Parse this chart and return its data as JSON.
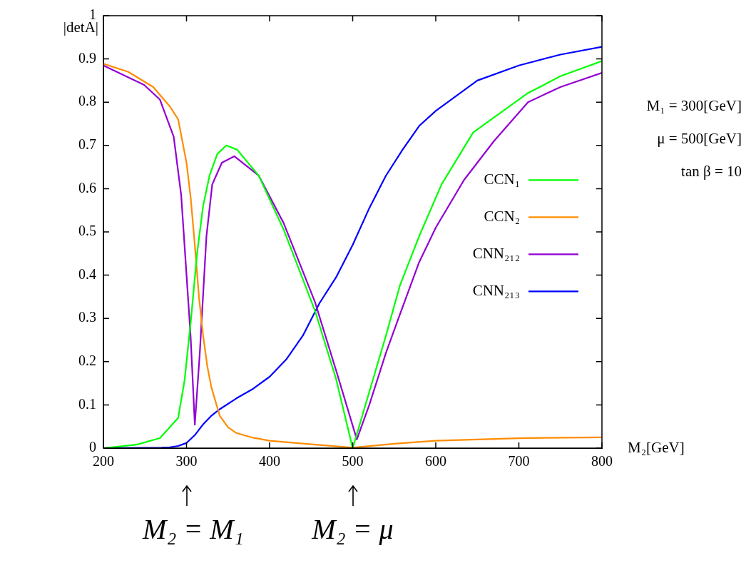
{
  "chart_data": {
    "type": "line",
    "xlabel": "M₂[GeV]",
    "ylabel": "|detA|",
    "xlim": [
      200,
      800
    ],
    "xticks": [
      200,
      300,
      400,
      500,
      600,
      700,
      800
    ],
    "ylim": [
      0,
      1
    ],
    "yticks": [
      0,
      0.1,
      0.2,
      0.3,
      0.4,
      0.5,
      0.6,
      0.7,
      0.8,
      0.9,
      1
    ],
    "grid": false,
    "legend": "right",
    "marker": "none",
    "line_style": "solid",
    "annotations": [
      "M₁ = 300[GeV]",
      "μ = 500[GeV]",
      "tan β = 10",
      "M₂ = M₁",
      "M₂ = μ"
    ],
    "series": [
      {
        "name": "CCN₁",
        "color": "#00ff00",
        "x": [
          200,
          240,
          268,
          290,
          297.7,
          305,
          312.7,
          320,
          327.7,
          337,
          348,
          361,
          387,
          417,
          454.6,
          480,
          500,
          520,
          540,
          557,
          580,
          607,
          645,
          710,
          750,
          800
        ],
        "values": [
          0.0,
          0.008,
          0.023,
          0.07,
          0.157,
          0.29,
          0.45,
          0.56,
          0.63,
          0.68,
          0.7,
          0.69,
          0.63,
          0.505,
          0.318,
          0.16,
          0.0,
          0.13,
          0.26,
          0.377,
          0.49,
          0.61,
          0.73,
          0.82,
          0.86,
          0.895
        ]
      },
      {
        "name": "CCN₂",
        "color": "#ff8c00",
        "x": [
          200,
          230,
          260,
          280,
          290,
          300,
          305,
          310,
          315,
          320,
          325,
          330,
          340,
          350,
          360,
          380,
          400,
          450,
          500,
          550,
          600,
          700,
          800
        ],
        "values": [
          0.889,
          0.87,
          0.835,
          0.79,
          0.76,
          0.66,
          0.58,
          0.47,
          0.35,
          0.26,
          0.19,
          0.14,
          0.075,
          0.048,
          0.035,
          0.024,
          0.017,
          0.009,
          0.001,
          0.01,
          0.017,
          0.023,
          0.025
        ]
      },
      {
        "name": "CNN₂₁₂",
        "color": "#9400d3",
        "x": [
          200,
          249,
          268,
          284.6,
          293.6,
          301.5,
          305,
          310,
          316,
          324,
          331,
          342.6,
          357.5,
          387,
          417,
          454.6,
          480,
          505,
          520,
          540,
          557,
          580,
          600,
          634,
          670,
          711,
          750,
          800
        ],
        "values": [
          0.885,
          0.84,
          0.806,
          0.72,
          0.585,
          0.358,
          0.257,
          0.054,
          0.22,
          0.49,
          0.61,
          0.66,
          0.675,
          0.63,
          0.52,
          0.338,
          0.18,
          0.02,
          0.1,
          0.22,
          0.31,
          0.43,
          0.51,
          0.62,
          0.71,
          0.8,
          0.835,
          0.868
        ]
      },
      {
        "name": "CNN₂₁₃",
        "color": "#0000ff",
        "x": [
          200,
          270,
          280,
          290,
          300,
          310,
          320,
          330,
          340,
          360,
          380,
          400,
          420,
          440,
          460,
          480,
          500,
          520,
          540,
          560,
          580,
          600,
          650,
          700,
          750,
          800
        ],
        "values": [
          0.0,
          0.001,
          0.002,
          0.005,
          0.012,
          0.03,
          0.055,
          0.075,
          0.09,
          0.115,
          0.137,
          0.165,
          0.205,
          0.26,
          0.335,
          0.395,
          0.47,
          0.555,
          0.63,
          0.69,
          0.745,
          0.78,
          0.85,
          0.885,
          0.91,
          0.928
        ]
      }
    ]
  }
}
